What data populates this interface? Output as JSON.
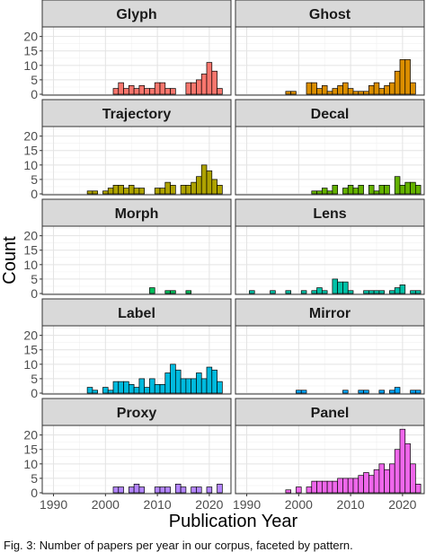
{
  "chart_data": {
    "type": "bar",
    "layout": "faceted-histogram-2-columns",
    "xlabel": "Publication Year",
    "ylabel": "Count",
    "xlim": [
      1988,
      2024
    ],
    "xticks": [
      1990,
      2000,
      2010,
      2020
    ],
    "ylim": [
      0,
      23
    ],
    "yticks": [
      0,
      5,
      10,
      15,
      20
    ],
    "grid": true,
    "legend": "none",
    "panels": [
      {
        "name": "Glyph",
        "color": "#F8766D",
        "years": [
          2002,
          2003,
          2004,
          2005,
          2006,
          2007,
          2008,
          2009,
          2010,
          2011,
          2012,
          2013,
          2016,
          2017,
          2018,
          2019,
          2020,
          2021,
          2022
        ],
        "values": [
          2,
          4,
          2,
          3,
          2,
          3,
          2,
          2,
          4,
          4,
          2,
          2,
          4,
          4,
          5,
          7,
          11,
          8,
          2
        ]
      },
      {
        "name": "Ghost",
        "color": "#DB8E00",
        "years": [
          1998,
          1999,
          2002,
          2003,
          2004,
          2005,
          2006,
          2007,
          2008,
          2009,
          2010,
          2011,
          2012,
          2013,
          2014,
          2015,
          2016,
          2017,
          2018,
          2019,
          2020,
          2021,
          2022
        ],
        "values": [
          1,
          1,
          4,
          4,
          2,
          3,
          1,
          2,
          3,
          4,
          2,
          1,
          1,
          1,
          3,
          4,
          2,
          3,
          4,
          8,
          12,
          12,
          4
        ]
      },
      {
        "name": "Trajectory",
        "color": "#AEA200",
        "years": [
          1997,
          1998,
          2000,
          2001,
          2002,
          2003,
          2004,
          2005,
          2006,
          2007,
          2010,
          2011,
          2012,
          2013,
          2015,
          2016,
          2017,
          2018,
          2019,
          2020,
          2021,
          2022
        ],
        "values": [
          1,
          1,
          1,
          2,
          3,
          3,
          2,
          3,
          2,
          2,
          2,
          2,
          4,
          3,
          3,
          3,
          4,
          6,
          10,
          8,
          5,
          3
        ]
      },
      {
        "name": "Decal",
        "color": "#64B200",
        "years": [
          2003,
          2004,
          2005,
          2006,
          2007,
          2009,
          2010,
          2011,
          2012,
          2014,
          2015,
          2016,
          2017,
          2019,
          2020,
          2021,
          2022,
          2023
        ],
        "values": [
          1,
          1,
          2,
          1,
          3,
          2,
          3,
          2,
          3,
          3,
          1,
          3,
          3,
          6,
          3,
          4,
          4,
          3
        ]
      },
      {
        "name": "Morph",
        "color": "#00BD5C",
        "years": [
          2009,
          2012,
          2013,
          2016
        ],
        "values": [
          2,
          1,
          1,
          1
        ]
      },
      {
        "name": "Lens",
        "color": "#00C1A7",
        "years": [
          1991,
          1995,
          1998,
          2001,
          2003,
          2004,
          2005,
          2007,
          2008,
          2009,
          2010,
          2013,
          2014,
          2015,
          2016,
          2018,
          2019,
          2020,
          2022,
          2023
        ],
        "values": [
          1,
          1,
          1,
          1,
          1,
          2,
          1,
          5,
          4,
          4,
          1,
          1,
          1,
          1,
          1,
          1,
          2,
          3,
          1,
          1
        ]
      },
      {
        "name": "Label",
        "color": "#00BADE",
        "years": [
          1997,
          1998,
          2000,
          2001,
          2002,
          2003,
          2004,
          2005,
          2006,
          2007,
          2008,
          2009,
          2010,
          2011,
          2012,
          2013,
          2014,
          2015,
          2016,
          2017,
          2018,
          2019,
          2020,
          2021,
          2022
        ],
        "values": [
          2,
          1,
          2,
          1,
          4,
          4,
          4,
          3,
          2,
          5,
          2,
          5,
          3,
          3,
          7,
          10,
          8,
          5,
          5,
          5,
          7,
          5,
          9,
          8,
          4
        ]
      },
      {
        "name": "Mirror",
        "color": "#00A6FF",
        "years": [
          2000,
          2001,
          2009,
          2012,
          2013,
          2016,
          2018,
          2019,
          2022,
          2023
        ],
        "values": [
          1,
          1,
          1,
          1,
          1,
          1,
          1,
          2,
          1,
          1
        ]
      },
      {
        "name": "Proxy",
        "color": "#B385FF",
        "years": [
          2002,
          2003,
          2005,
          2006,
          2007,
          2010,
          2011,
          2012,
          2014,
          2015,
          2017,
          2018,
          2020,
          2022
        ],
        "values": [
          2,
          2,
          2,
          3,
          2,
          2,
          2,
          2,
          3,
          2,
          2,
          2,
          2,
          3
        ]
      },
      {
        "name": "Panel",
        "color": "#EF67EB",
        "years": [
          1998,
          2000,
          2002,
          2003,
          2004,
          2005,
          2006,
          2007,
          2008,
          2009,
          2010,
          2011,
          2012,
          2013,
          2014,
          2015,
          2016,
          2017,
          2018,
          2019,
          2020,
          2021,
          2022,
          2023
        ],
        "values": [
          1,
          2,
          2,
          4,
          4,
          4,
          4,
          4,
          5,
          5,
          5,
          5,
          6,
          7,
          6,
          8,
          10,
          8,
          10,
          15,
          22,
          17,
          10,
          3
        ]
      }
    ]
  },
  "caption": "Fig. 3: Number of papers per year in our corpus, faceted by pattern."
}
